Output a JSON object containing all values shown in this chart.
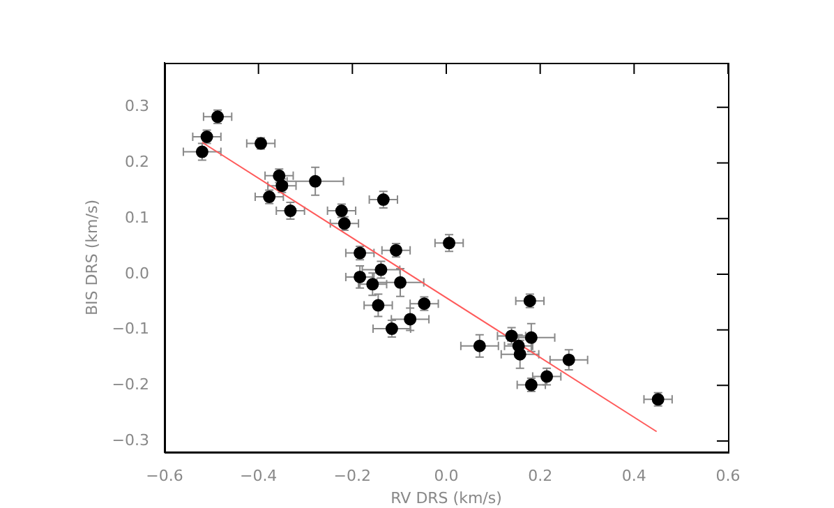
{
  "chart_data": {
    "type": "scatter",
    "xlabel": "RV DRS (km/s)",
    "ylabel": "BIS DRS (km/s)",
    "xlim": [
      -0.6,
      0.6
    ],
    "xticks": [
      {
        "value": -0.6,
        "label": "−0.6"
      },
      {
        "value": -0.4,
        "label": "−0.4"
      },
      {
        "value": -0.2,
        "label": "−0.2"
      },
      {
        "value": 0,
        "label": "0.0"
      },
      {
        "value": 0.2,
        "label": "0.2"
      },
      {
        "value": 0.4,
        "label": "0.4"
      },
      {
        "value": 0.6,
        "label": "0.6"
      }
    ],
    "ylim": [
      -0.32,
      0.38
    ],
    "yticks": [
      {
        "value": -0.3,
        "label": "−0.3"
      },
      {
        "value": -0.2,
        "label": "−0.2"
      },
      {
        "value": -0.1,
        "label": "−0.1"
      },
      {
        "value": 0,
        "label": "0.0"
      },
      {
        "value": 0.1,
        "label": "0.1"
      },
      {
        "value": 0.2,
        "label": "0.2"
      },
      {
        "value": 0.3,
        "label": "0.3"
      }
    ],
    "grid": false,
    "legend": false,
    "series": [
      {
        "color": "#000000",
        "marker": "circle",
        "x": [
          -0.487,
          -0.51,
          -0.52,
          -0.395,
          -0.356,
          -0.35,
          -0.377,
          -0.332,
          -0.279,
          -0.134,
          -0.223,
          -0.217,
          0.006,
          -0.107,
          -0.184,
          -0.139,
          -0.184,
          -0.157,
          -0.098,
          -0.047,
          -0.145,
          -0.077,
          -0.116,
          0.178,
          0.071,
          0.139,
          0.181,
          0.154,
          0.157,
          0.261,
          0.214,
          0.181,
          0.451
        ],
        "values": [
          0.283,
          0.247,
          0.22,
          0.235,
          0.177,
          0.159,
          0.139,
          0.114,
          0.167,
          0.134,
          0.114,
          0.091,
          0.056,
          0.043,
          0.038,
          0.008,
          -0.005,
          -0.018,
          -0.015,
          -0.053,
          -0.056,
          -0.081,
          -0.098,
          -0.048,
          -0.129,
          -0.111,
          -0.114,
          -0.129,
          -0.144,
          -0.154,
          -0.184,
          -0.199,
          -0.225
        ],
        "errors": [
          0.012,
          0.012,
          0.015,
          0.01,
          0.012,
          0.012,
          0.012,
          0.015,
          0.025,
          0.015,
          0.012,
          0.012,
          0.015,
          0.012,
          0.012,
          0.015,
          0.02,
          0.02,
          0.025,
          0.012,
          0.02,
          0.02,
          0.015,
          0.012,
          0.02,
          0.015,
          0.025,
          0.02,
          0.025,
          0.018,
          0.015,
          0.012,
          0.012
        ],
        "xerrors": [
          0.03,
          0.03,
          0.04,
          0.03,
          0.03,
          0.03,
          0.03,
          0.03,
          0.06,
          0.03,
          0.03,
          0.03,
          0.03,
          0.03,
          0.03,
          0.04,
          0.03,
          0.03,
          0.05,
          0.03,
          0.03,
          0.04,
          0.04,
          0.03,
          0.04,
          0.03,
          0.05,
          0.03,
          0.04,
          0.04,
          0.03,
          0.03,
          0.03
        ]
      },
      {
        "type": "line",
        "color": "#ff5a5a",
        "x": [
          -0.52,
          0.448
        ],
        "values": [
          0.237,
          -0.283
        ]
      }
    ]
  }
}
